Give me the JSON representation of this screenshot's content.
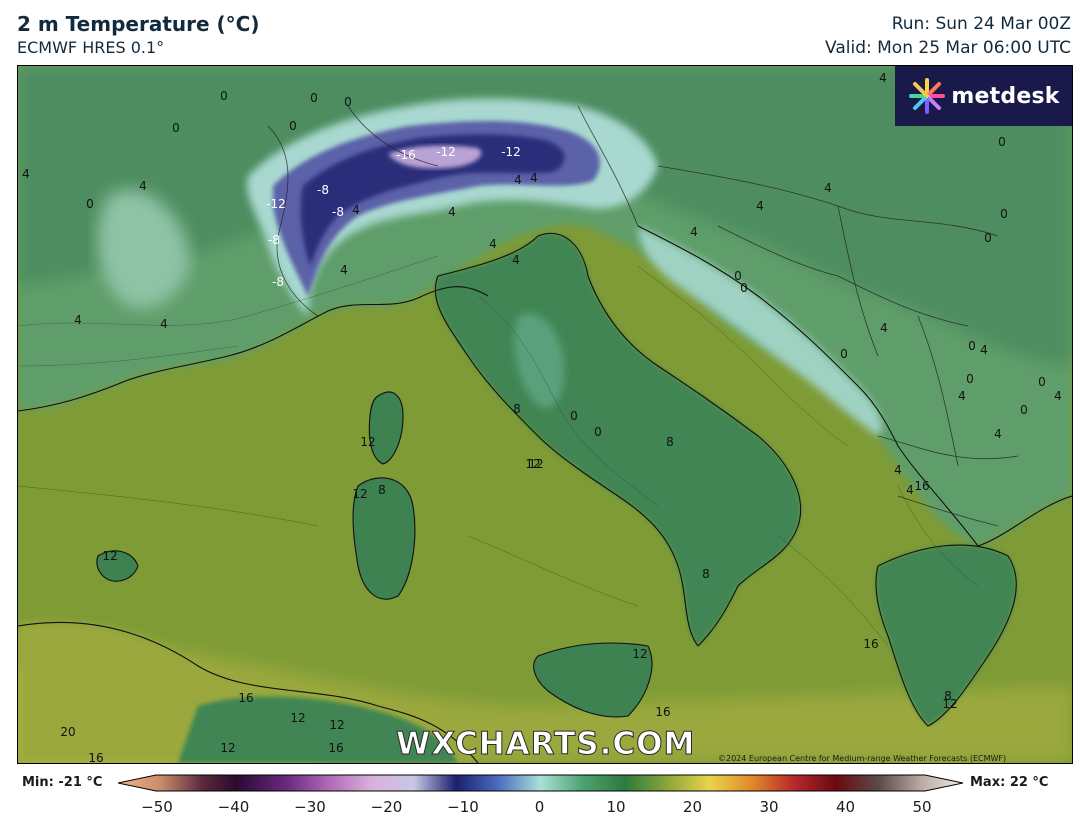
{
  "header": {
    "title": "2 m Temperature (°C)",
    "model": "ECMWF HRES 0.1°",
    "run": "Run: Sun 24 Mar 00Z",
    "valid": "Valid: Mon 25 Mar 06:00 UTC"
  },
  "branding": {
    "logo_text": "metdesk",
    "watermark": "WXCHARTS.COM",
    "copyright": "©2024 European Centre for Medium-range Weather Forecasts (ECMWF)"
  },
  "legend": {
    "min_label": "Min: -21 °C",
    "max_label": "Max: 22 °C",
    "ticks": [
      "−50",
      "−40",
      "−30",
      "−20",
      "−10",
      "0",
      "10",
      "20",
      "30",
      "40",
      "50"
    ],
    "range": [
      -50,
      50
    ]
  },
  "contour_labels": [
    {
      "text": "0"
    },
    {
      "text": "0"
    },
    {
      "text": "0"
    },
    {
      "text": "4"
    },
    {
      "text": "0"
    },
    {
      "text": "0"
    },
    {
      "text": "4"
    },
    {
      "text": "4"
    },
    {
      "text": "0"
    },
    {
      "text": "-16"
    },
    {
      "text": "-12"
    },
    {
      "text": "-12"
    },
    {
      "text": "-8"
    },
    {
      "text": "-8"
    },
    {
      "text": "-12"
    },
    {
      "text": "-8"
    },
    {
      "text": "-8"
    },
    {
      "text": "4"
    },
    {
      "text": "4"
    },
    {
      "text": "4"
    },
    {
      "text": "4"
    },
    {
      "text": "4"
    },
    {
      "text": "4"
    },
    {
      "text": "0"
    },
    {
      "text": "0"
    },
    {
      "text": "4"
    },
    {
      "text": "4"
    },
    {
      "text": "4"
    },
    {
      "text": "8"
    },
    {
      "text": "12"
    },
    {
      "text": "12"
    },
    {
      "text": "8"
    },
    {
      "text": "12"
    },
    {
      "text": "0"
    },
    {
      "text": "0"
    },
    {
      "text": "8"
    },
    {
      "text": "12"
    },
    {
      "text": "8"
    },
    {
      "text": "12"
    },
    {
      "text": "16"
    },
    {
      "text": "16"
    },
    {
      "text": "12"
    },
    {
      "text": "12"
    },
    {
      "text": "12"
    },
    {
      "text": "12"
    },
    {
      "text": "16"
    },
    {
      "text": "20"
    },
    {
      "text": "16"
    },
    {
      "text": "16"
    },
    {
      "text": "0"
    },
    {
      "text": "0"
    },
    {
      "text": "0"
    },
    {
      "text": "4"
    },
    {
      "text": "4"
    },
    {
      "text": "4"
    },
    {
      "text": "0"
    },
    {
      "text": "0"
    },
    {
      "text": "4"
    },
    {
      "text": "0"
    },
    {
      "text": "4"
    },
    {
      "text": "4"
    },
    {
      "text": "4"
    },
    {
      "text": "8"
    },
    {
      "text": "12"
    },
    {
      "text": "16"
    },
    {
      "text": "4"
    },
    {
      "text": "0"
    },
    {
      "text": "0"
    },
    {
      "text": "4"
    },
    {
      "text": "4"
    }
  ],
  "colors": {
    "sea_warm": "#7e9b36",
    "land_mild": "#4f8f57",
    "land_cool": "#7fb796",
    "alps_cold": "#2c2f7a",
    "hot_coast": "#c8c440"
  }
}
